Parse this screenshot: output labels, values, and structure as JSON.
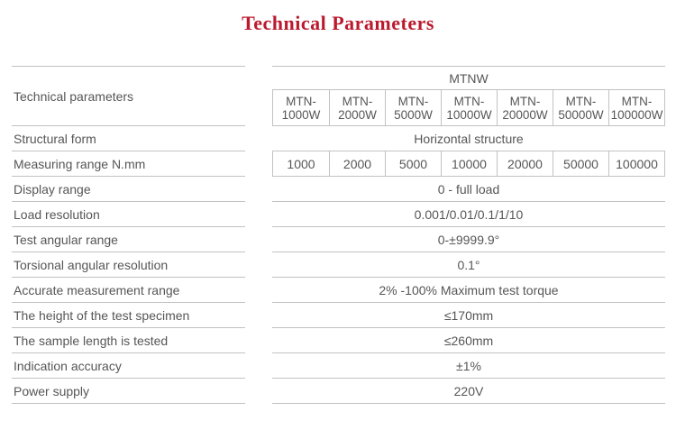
{
  "title": "Technical Parameters",
  "colors": {
    "title_accent": "#bb1a2e",
    "text": "#565656",
    "line": "#c2c2c2",
    "background": "#ffffff"
  },
  "table": {
    "corner_label": "Technical parameters",
    "group_header": "MTNW",
    "models": [
      "MTN-1000W",
      "MTN-2000W",
      "MTN-5000W",
      "MTN-10000W",
      "MTN-20000W",
      "MTN-50000W",
      "MTN-100000W"
    ],
    "rows": [
      {
        "label": "Structural form",
        "value": "Horizontal structure"
      },
      {
        "label": "Measuring range N.mm",
        "values": [
          "1000",
          "2000",
          "5000",
          "10000",
          "20000",
          "50000",
          "100000"
        ]
      },
      {
        "label": "Display range",
        "value": "0 - full load"
      },
      {
        "label": "Load resolution",
        "value": "0.001/0.01/0.1/1/10"
      },
      {
        "label": "Test angular range",
        "value": "0-±9999.9°"
      },
      {
        "label": "Torsional angular resolution",
        "value": "0.1°"
      },
      {
        "label": "Accurate measurement range",
        "value": "2% -100% Maximum test torque"
      },
      {
        "label": "The height of the test specimen",
        "value": "≤170mm"
      },
      {
        "label": "The sample length is tested",
        "value": "≤260mm"
      },
      {
        "label": "Indication accuracy",
        "value": "±1%"
      },
      {
        "label": "Power supply",
        "value": "220V"
      }
    ]
  }
}
